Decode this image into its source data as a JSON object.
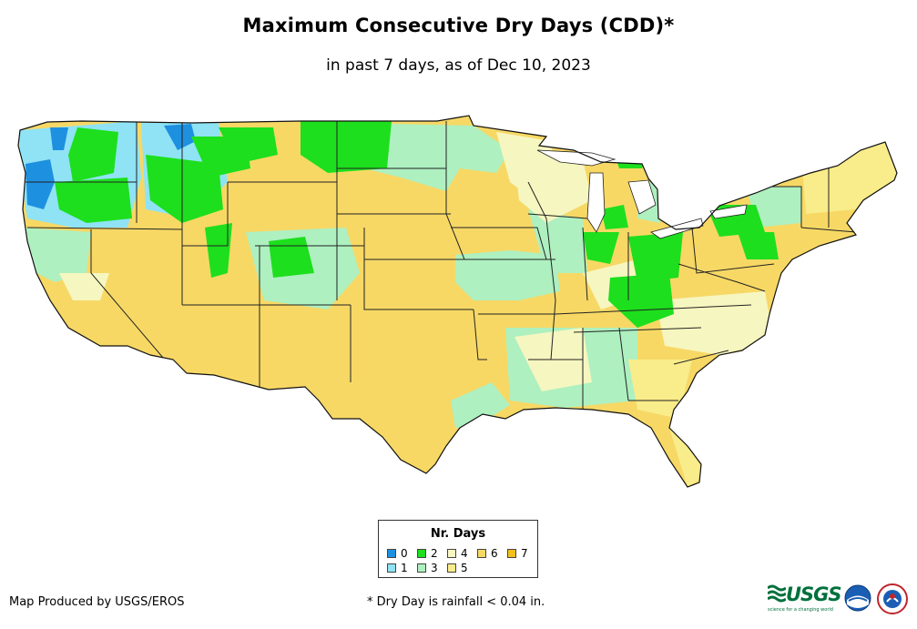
{
  "title": "Maximum Consecutive Dry Days (CDD)*",
  "subtitle": "in past 7 days, as of Dec 10, 2023",
  "legend": {
    "title": "Nr. Days",
    "items": [
      {
        "label": "0",
        "color": "#1e90e0"
      },
      {
        "label": "1",
        "color": "#8fe3f5"
      },
      {
        "label": "2",
        "color": "#1ddf1d"
      },
      {
        "label": "3",
        "color": "#aef0c0"
      },
      {
        "label": "4",
        "color": "#f6f6c0"
      },
      {
        "label": "5",
        "color": "#f9ec8a"
      },
      {
        "label": "6",
        "color": "#f7d865"
      },
      {
        "label": "7",
        "color": "#f5bf1a"
      }
    ]
  },
  "credit": "Map Produced by USGS/EROS",
  "footnote": "* Dry Day is rainfall < 0.04 in.",
  "logos": {
    "usgs": "USGS",
    "usgs_tagline": "science for a changing world",
    "noaa": "noaa-logo-icon",
    "nws": "nws-logo-icon"
  }
}
